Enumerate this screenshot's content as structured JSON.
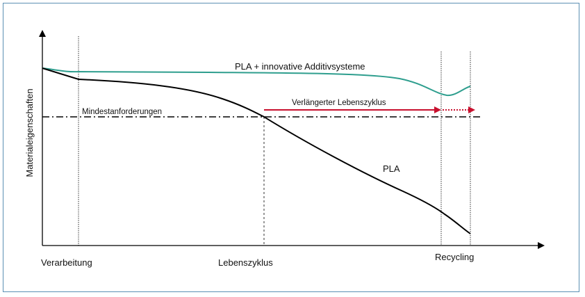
{
  "diagram": {
    "y_axis_label": "Materialeigenschaften",
    "x_labels": {
      "processing": "Verarbeitung",
      "lifecycle": "Lebenszyklus",
      "recycling": "Recycling"
    },
    "curves": {
      "additive": {
        "label": "PLA + innovative Additivsysteme",
        "color": "#2e9e8e"
      },
      "pla": {
        "label": "PLA",
        "color": "#000000"
      }
    },
    "threshold_label": "Mindestanforderungen",
    "extension": {
      "label": "Verlängerter Lebenszyklus",
      "color": "#c8102e"
    }
  }
}
